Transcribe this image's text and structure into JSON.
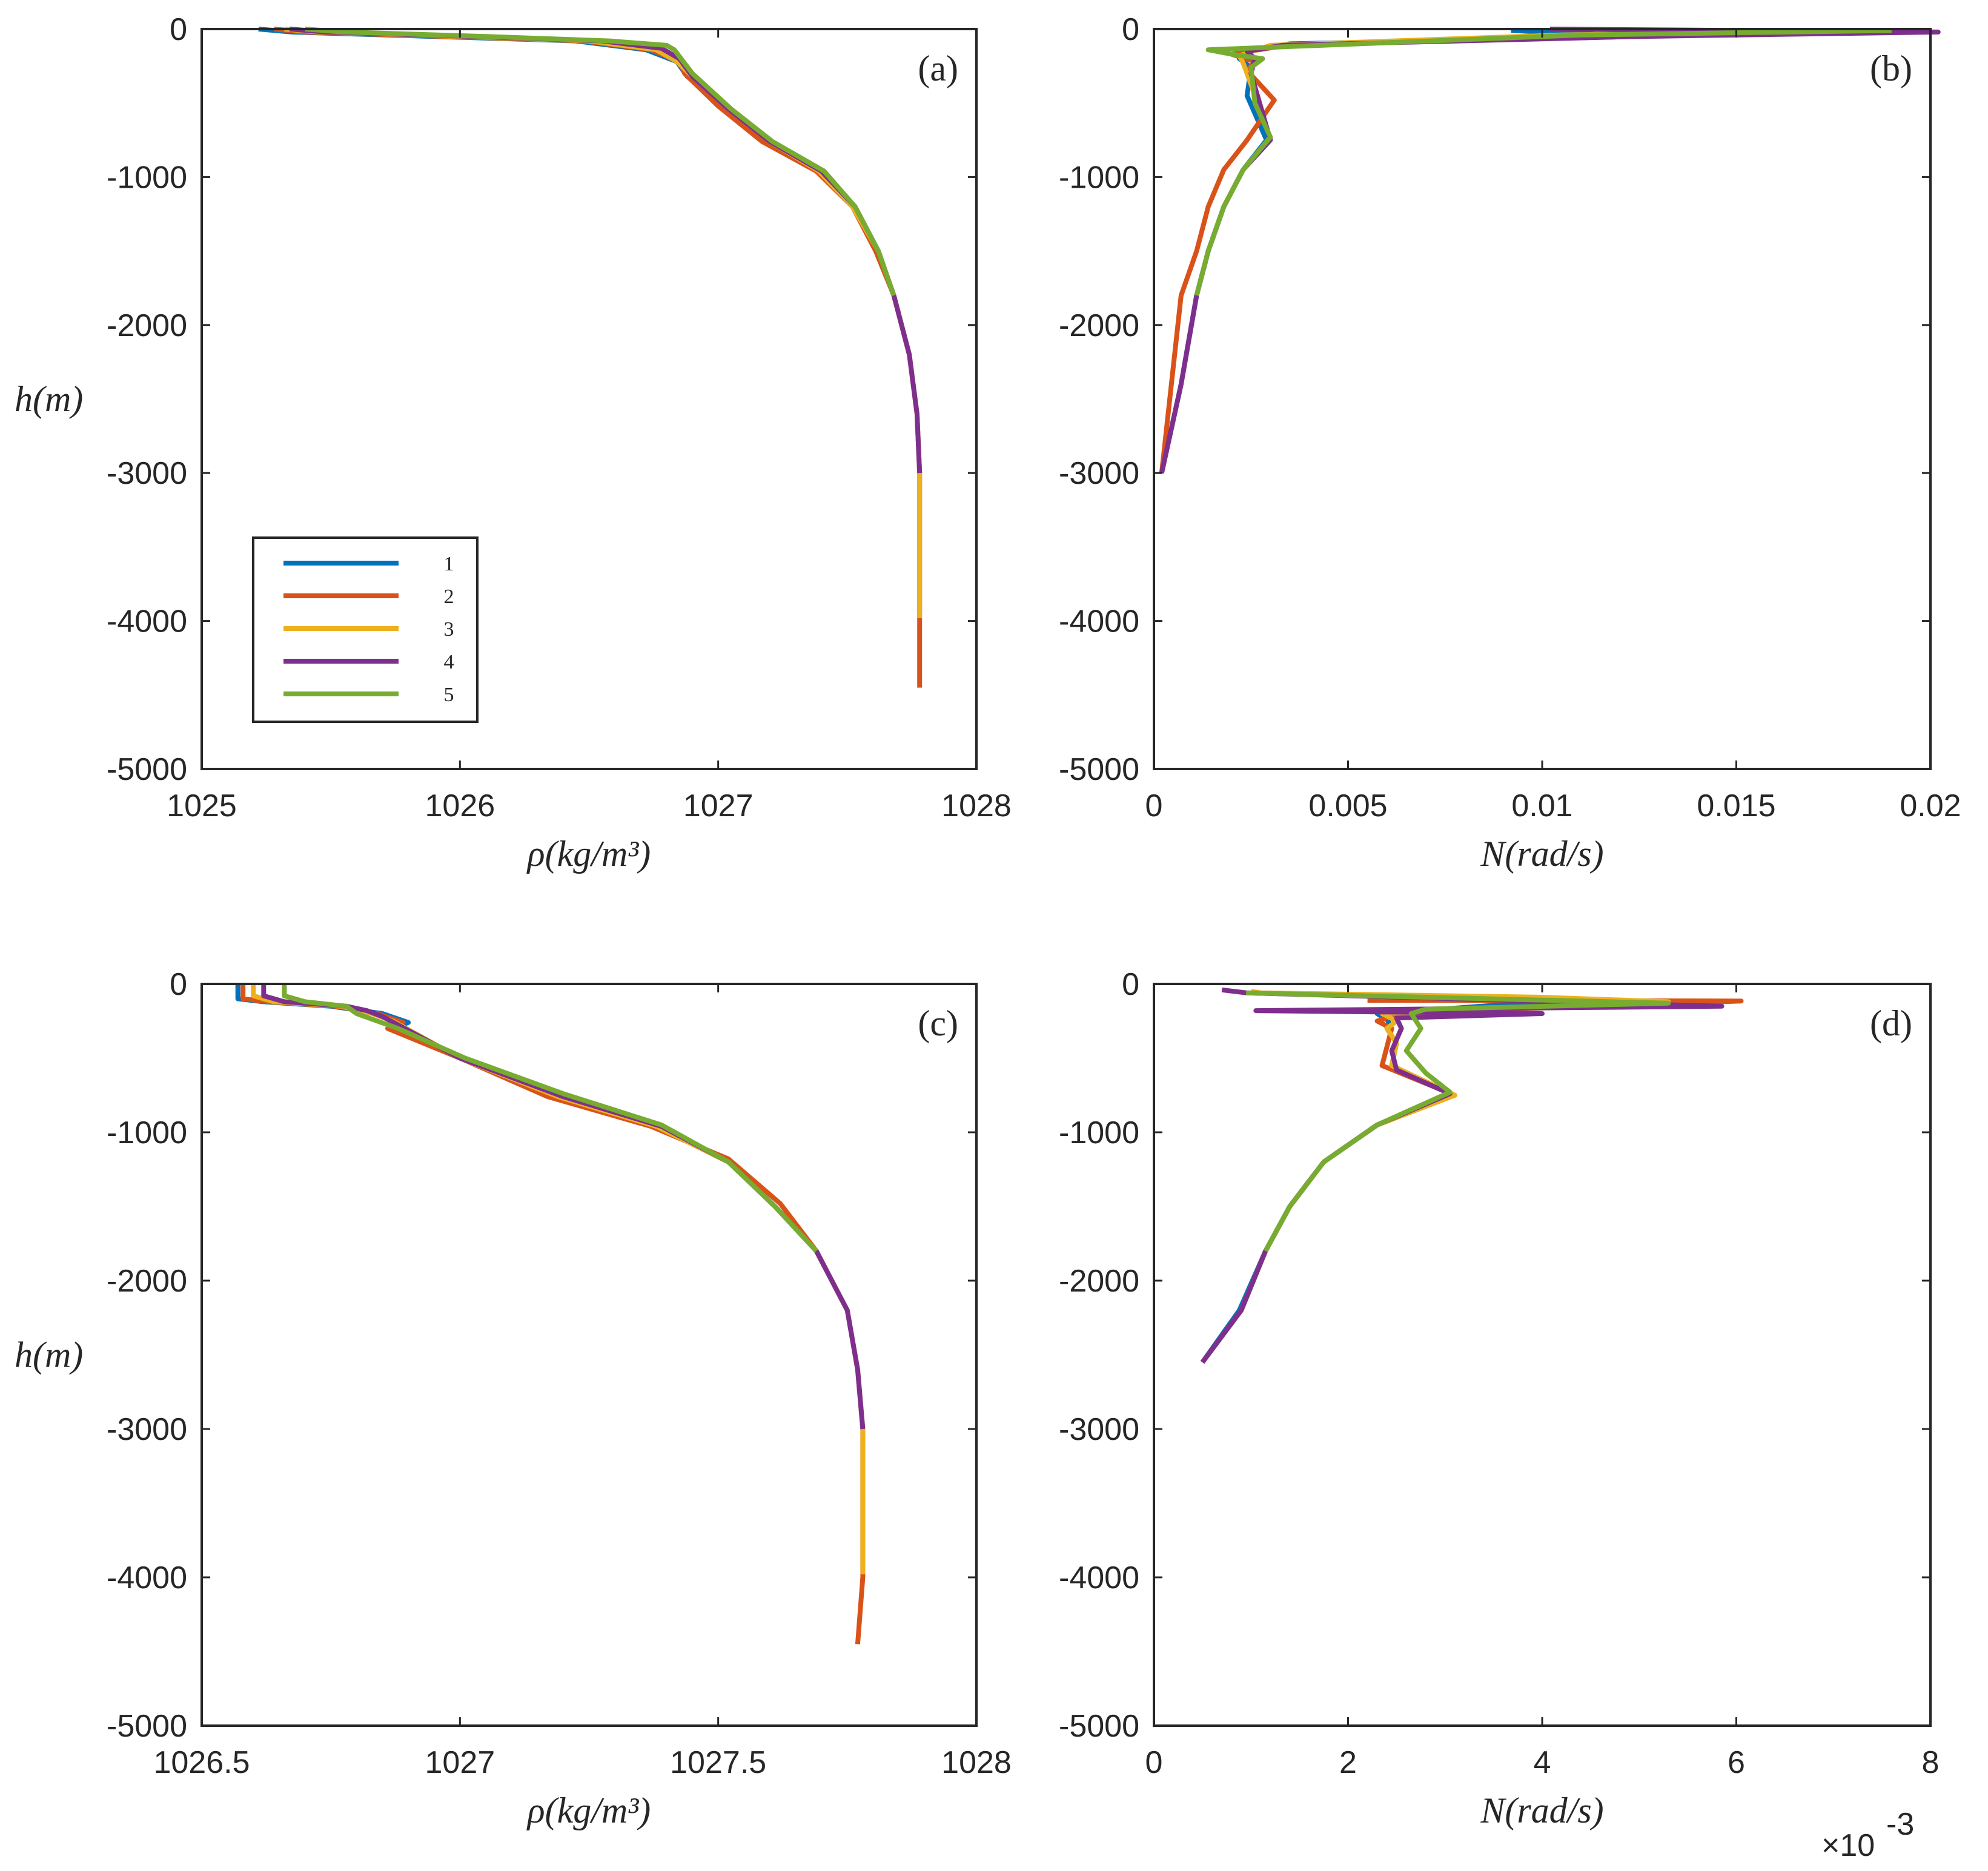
{
  "chart_data": [
    {
      "id": "a",
      "type": "line",
      "panel_label": "(a)",
      "xlabel": "ρ(kg/m³)",
      "ylabel": "h(m)",
      "xlim": [
        1025,
        1028
      ],
      "ylim": [
        -5000,
        0
      ],
      "xticks": [
        "1025",
        "1026",
        "1027",
        "1028"
      ],
      "xtick_values": [
        1025,
        1026,
        1027,
        1028
      ],
      "yticks": [
        "0",
        "-1000",
        "-2000",
        "-3000",
        "-4000",
        "-5000"
      ],
      "ytick_values": [
        0,
        -1000,
        -2000,
        -3000,
        -4000,
        -5000
      ],
      "legend": {
        "position": "lower-left",
        "entries": [
          "1",
          "2",
          "3",
          "4",
          "5"
        ]
      },
      "series": [
        {
          "name": "1",
          "color": "#0072BD",
          "x": [
            1025.22,
            1025.35,
            1025.9,
            1026.45,
            1026.72,
            1026.84,
            1026.88,
            1027.05,
            1027.2,
            1027.4,
            1027.53,
            1027.62,
            1027.68
          ],
          "y": [
            0,
            -20,
            -50,
            -80,
            -140,
            -220,
            -320,
            -560,
            -760,
            -960,
            -1200,
            -1500,
            -1800
          ]
        },
        {
          "name": "2",
          "color": "#D95319",
          "x": [
            1025.28,
            1025.4,
            1025.95,
            1026.48,
            1026.74,
            1026.85,
            1026.87,
            1027.0,
            1027.17,
            1027.38,
            1027.52,
            1027.61,
            1027.68,
            1027.74,
            1027.77,
            1027.78,
            1027.78,
            1027.78
          ],
          "y": [
            0,
            -20,
            -50,
            -80,
            -140,
            -220,
            -300,
            -520,
            -760,
            -960,
            -1200,
            -1500,
            -1800,
            -2200,
            -2600,
            -3000,
            -4000,
            -4450
          ]
        },
        {
          "name": "3",
          "color": "#EDB120",
          "x": [
            1025.32,
            1025.45,
            1026.0,
            1026.5,
            1026.76,
            1026.84,
            1026.9,
            1027.04,
            1027.2,
            1027.39,
            1027.52,
            1027.62,
            1027.68,
            1027.74,
            1027.77,
            1027.78,
            1027.78
          ],
          "y": [
            0,
            -20,
            -50,
            -80,
            -140,
            -220,
            -320,
            -540,
            -760,
            -960,
            -1200,
            -1500,
            -1800,
            -2200,
            -2600,
            -3000,
            -3980
          ]
        },
        {
          "name": "4",
          "color": "#7E2F8E",
          "x": [
            1025.34,
            1025.48,
            1026.05,
            1026.55,
            1026.78,
            1026.85,
            1026.9,
            1027.04,
            1027.2,
            1027.4,
            1027.53,
            1027.62,
            1027.68,
            1027.74,
            1027.77,
            1027.78
          ],
          "y": [
            0,
            -20,
            -50,
            -80,
            -130,
            -200,
            -320,
            -540,
            -760,
            -960,
            -1200,
            -1500,
            -1800,
            -2200,
            -2600,
            -3000
          ]
        },
        {
          "name": "5",
          "color": "#77AC30",
          "x": [
            1025.4,
            1025.55,
            1026.1,
            1026.58,
            1026.8,
            1026.83,
            1026.9,
            1027.05,
            1027.21,
            1027.41,
            1027.53,
            1027.62,
            1027.68
          ],
          "y": [
            0,
            -20,
            -50,
            -80,
            -110,
            -140,
            -300,
            -540,
            -760,
            -960,
            -1200,
            -1500,
            -1800
          ]
        }
      ]
    },
    {
      "id": "b",
      "type": "line",
      "panel_label": "(b)",
      "xlabel": "N(rad/s)",
      "ylabel": "",
      "xlim": [
        0,
        0.02
      ],
      "ylim": [
        -5000,
        0
      ],
      "xticks": [
        "0",
        "0.005",
        "0.01",
        "0.015",
        "0.02"
      ],
      "xtick_values": [
        0,
        0.005,
        0.01,
        0.015,
        0.02
      ],
      "yticks": [
        "0",
        "-1000",
        "-2000",
        "-3000",
        "-4000",
        "-5000"
      ],
      "ytick_values": [
        0,
        -1000,
        -2000,
        -3000,
        -4000,
        -5000
      ],
      "series": [
        {
          "name": "1",
          "color": "#0072BD",
          "x": [
            0.0092,
            0.0125,
            0.0035,
            0.0024,
            0.0022,
            0.0025,
            0.0024,
            0.0029,
            0.0023,
            0.0018,
            0.0014,
            0.0011,
            0.0007,
            0.0002
          ],
          "y": [
            -10,
            -50,
            -100,
            -150,
            -200,
            -260,
            -450,
            -750,
            -950,
            -1200,
            -1500,
            -1800,
            -2400,
            -3000
          ]
        },
        {
          "name": "2",
          "color": "#D95319",
          "x": [
            0.0165,
            0.0098,
            0.0034,
            0.002,
            0.0026,
            0.0024,
            0.0031,
            0.0024,
            0.0018,
            0.0014,
            0.0011,
            0.0007,
            0.0002
          ],
          "y": [
            -10,
            -50,
            -110,
            -170,
            -220,
            -280,
            -480,
            -750,
            -950,
            -1200,
            -1500,
            -1800,
            -3000
          ]
        },
        {
          "name": "3",
          "color": "#EDB120",
          "x": [
            0.0175,
            0.0105,
            0.003,
            0.0022,
            0.0023,
            0.0024,
            0.003,
            0.0023,
            0.0018
          ],
          "y": [
            -10,
            -40,
            -110,
            -180,
            -230,
            -300,
            -740,
            -950,
            -1200
          ]
        },
        {
          "name": "4",
          "color": "#7E2F8E",
          "x": [
            0.0102,
            0.0202,
            0.0125,
            0.0033,
            0.0024,
            0.0026,
            0.0025,
            0.003,
            0.0023,
            0.0018,
            0.0014,
            0.0011,
            0.0007,
            0.0002
          ],
          "y": [
            0,
            -20,
            -50,
            -110,
            -150,
            -200,
            -300,
            -750,
            -950,
            -1200,
            -1500,
            -1800,
            -2400,
            -3000
          ]
        },
        {
          "name": "5",
          "color": "#77AC30",
          "x": [
            0.019,
            0.011,
            0.0014,
            0.002,
            0.0028,
            0.0025,
            0.0026,
            0.003,
            0.0023,
            0.0018,
            0.0014,
            0.0011
          ],
          "y": [
            -10,
            -40,
            -140,
            -170,
            -200,
            -260,
            -500,
            -730,
            -950,
            -1200,
            -1500,
            -1800
          ]
        }
      ]
    },
    {
      "id": "c",
      "type": "line",
      "panel_label": "(c)",
      "xlabel": "ρ(kg/m³)",
      "ylabel": "h(m)",
      "xlim": [
        1026.5,
        1028
      ],
      "ylim": [
        -5000,
        0
      ],
      "xticks": [
        "1026.5",
        "1027",
        "1027.5",
        "1028"
      ],
      "xtick_values": [
        1026.5,
        1027,
        1027.5,
        1028
      ],
      "yticks": [
        "0",
        "-1000",
        "-2000",
        "-3000",
        "-4000",
        "-5000"
      ],
      "ytick_values": [
        0,
        -1000,
        -2000,
        -3000,
        -4000,
        -5000
      ],
      "series": [
        {
          "name": "1",
          "color": "#0072BD",
          "x": [
            1026.57,
            1026.57,
            1026.62,
            1026.75,
            1026.85,
            1026.9,
            1026.87,
            1027.0,
            1027.2,
            1027.38,
            1027.52,
            1027.61,
            1027.69
          ],
          "y": [
            0,
            -100,
            -120,
            -150,
            -200,
            -260,
            -300,
            -500,
            -760,
            -960,
            -1200,
            -1500,
            -1800
          ]
        },
        {
          "name": "2",
          "color": "#D95319",
          "x": [
            1026.58,
            1026.58,
            1026.63,
            1026.76,
            1026.84,
            1026.89,
            1026.86,
            1027.0,
            1027.17,
            1027.37,
            1027.52,
            1027.62,
            1027.69,
            1027.75,
            1027.77,
            1027.78,
            1027.78,
            1027.77
          ],
          "y": [
            0,
            -100,
            -120,
            -150,
            -200,
            -260,
            -300,
            -500,
            -760,
            -960,
            -1180,
            -1480,
            -1800,
            -2200,
            -2600,
            -3000,
            -4000,
            -4450
          ]
        },
        {
          "name": "3",
          "color": "#EDB120",
          "x": [
            1026.6,
            1026.6,
            1026.64,
            1026.77,
            1026.83,
            1026.87,
            1027.0,
            1027.19,
            1027.38,
            1027.52,
            1027.61,
            1027.69,
            1027.75,
            1027.77,
            1027.78,
            1027.78
          ],
          "y": [
            0,
            -80,
            -120,
            -150,
            -200,
            -250,
            -500,
            -760,
            -960,
            -1200,
            -1500,
            -1800,
            -2200,
            -2600,
            -3000,
            -3980
          ]
        },
        {
          "name": "4",
          "color": "#7E2F8E",
          "x": [
            1026.62,
            1026.62,
            1026.66,
            1026.78,
            1026.82,
            1026.85,
            1027.0,
            1027.2,
            1027.39,
            1027.52,
            1027.61,
            1027.69,
            1027.75,
            1027.77,
            1027.78
          ],
          "y": [
            0,
            -80,
            -120,
            -150,
            -180,
            -220,
            -500,
            -760,
            -960,
            -1200,
            -1500,
            -1800,
            -2200,
            -2600,
            -3000
          ]
        },
        {
          "name": "5",
          "color": "#77AC30",
          "x": [
            1026.66,
            1026.66,
            1026.7,
            1026.78,
            1026.8,
            1026.88,
            1027.01,
            1027.2,
            1027.39,
            1027.52,
            1027.61,
            1027.69
          ],
          "y": [
            0,
            -80,
            -120,
            -150,
            -200,
            -300,
            -500,
            -740,
            -950,
            -1200,
            -1500,
            -1800
          ]
        }
      ]
    },
    {
      "id": "d",
      "type": "line",
      "panel_label": "(d)",
      "xlabel": "N(rad/s)",
      "ylabel": "",
      "xlim": [
        0,
        8
      ],
      "ylim": [
        -5000,
        0
      ],
      "xticks": [
        "0",
        "2",
        "4",
        "6",
        "8"
      ],
      "xtick_values": [
        0,
        2,
        4,
        6,
        8
      ],
      "x_exponent": "×10",
      "x_exponent_power": "-3",
      "yticks": [
        "0",
        "-1000",
        "-2000",
        "-3000",
        "-4000",
        "-5000"
      ],
      "ytick_values": [
        0,
        -1000,
        -2000,
        -3000,
        -4000,
        -5000
      ],
      "series": [
        {
          "name": "1",
          "color": "#0072BD",
          "x": [
            5.4,
            3.6,
            2.3,
            2.42,
            2.4,
            2.5,
            2.45,
            3.05,
            2.3,
            1.75,
            1.4,
            1.15,
            0.88,
            0.5
          ],
          "y": [
            -120,
            -140,
            -200,
            -250,
            -300,
            -400,
            -550,
            -740,
            -950,
            -1200,
            -1500,
            -1800,
            -2200,
            -2550
          ]
        },
        {
          "name": "2",
          "color": "#D95319",
          "x": [
            2.2,
            6.05,
            2.35,
            2.5,
            2.3,
            2.45,
            2.35,
            3.1,
            2.3,
            1.75,
            1.4,
            1.15,
            0.9,
            0.5
          ],
          "y": [
            -110,
            -115,
            -200,
            -210,
            -250,
            -300,
            -550,
            -750,
            -950,
            -1200,
            -1500,
            -1800,
            -2200,
            -2550
          ]
        },
        {
          "name": "3",
          "color": "#EDB120",
          "x": [
            1.0,
            1.1,
            4.0,
            5.3,
            2.35,
            2.5,
            2.4,
            2.5,
            2.45,
            3.1,
            2.3,
            1.75,
            1.4,
            1.15,
            0.9
          ],
          "y": [
            -50,
            -60,
            -90,
            -120,
            -200,
            -250,
            -300,
            -400,
            -550,
            -750,
            -950,
            -1200,
            -1500,
            -1800,
            -2200
          ]
        },
        {
          "name": "4",
          "color": "#7E2F8E",
          "x": [
            0.7,
            0.95,
            5.85,
            1.05,
            4.0,
            2.5,
            2.55,
            2.45,
            2.5,
            3.05,
            2.3,
            1.75,
            1.4,
            1.15,
            0.9,
            0.5
          ],
          "y": [
            -40,
            -60,
            -150,
            -180,
            -200,
            -230,
            -300,
            -450,
            -580,
            -740,
            -950,
            -1200,
            -1500,
            -1800,
            -2200,
            -2550
          ]
        },
        {
          "name": "5",
          "color": "#77AC30",
          "x": [
            0.95,
            5.3,
            2.8,
            2.65,
            2.75,
            2.6,
            2.8,
            3.05,
            2.3,
            1.75,
            1.4,
            1.15
          ],
          "y": [
            -60,
            -130,
            -170,
            -200,
            -300,
            -450,
            -600,
            -730,
            -950,
            -1200,
            -1500,
            -1800
          ]
        }
      ]
    }
  ]
}
